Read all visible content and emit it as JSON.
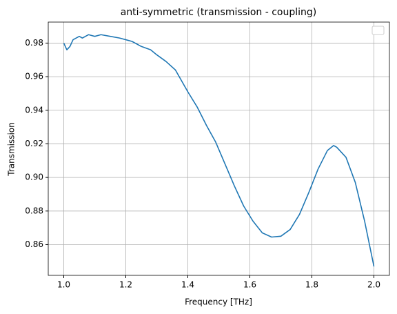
{
  "chart_data": {
    "type": "line",
    "title": "anti-symmetric (transmission - coupling)",
    "x_label": "Frequency [THz]",
    "y_label": "Transmission",
    "x": [
      1.0,
      1.01,
      1.02,
      1.03,
      1.05,
      1.06,
      1.08,
      1.1,
      1.12,
      1.15,
      1.18,
      1.2,
      1.22,
      1.25,
      1.28,
      1.3,
      1.33,
      1.36,
      1.4,
      1.43,
      1.46,
      1.49,
      1.52,
      1.55,
      1.58,
      1.61,
      1.64,
      1.67,
      1.7,
      1.73,
      1.76,
      1.79,
      1.82,
      1.85,
      1.87,
      1.88,
      1.91,
      1.94,
      1.97,
      2.0
    ],
    "series": [
      {
        "name": null,
        "color": "#1f77b4",
        "values": [
          0.98,
          0.976,
          0.978,
          0.982,
          0.984,
          0.983,
          0.985,
          0.984,
          0.985,
          0.984,
          0.983,
          0.982,
          0.981,
          0.978,
          0.976,
          0.973,
          0.969,
          0.964,
          0.951,
          0.942,
          0.931,
          0.921,
          0.908,
          0.895,
          0.883,
          0.874,
          0.867,
          0.8645,
          0.865,
          0.869,
          0.878,
          0.891,
          0.905,
          0.916,
          0.919,
          0.918,
          0.912,
          0.897,
          0.874,
          0.847
        ]
      }
    ],
    "xlim": [
      0.95,
      2.05
    ],
    "ylim": [
      0.8417,
      0.9925
    ],
    "xticks": [
      {
        "value": 1,
        "label": "1.0"
      },
      1.2,
      1.4,
      1.6,
      1.8,
      {
        "value": 2,
        "label": "2.0"
      }
    ],
    "yticks": [
      0.86,
      0.88,
      {
        "value": 0.9,
        "label": "0.90"
      },
      0.92,
      0.94,
      0.96,
      0.98
    ],
    "grid": true
  }
}
